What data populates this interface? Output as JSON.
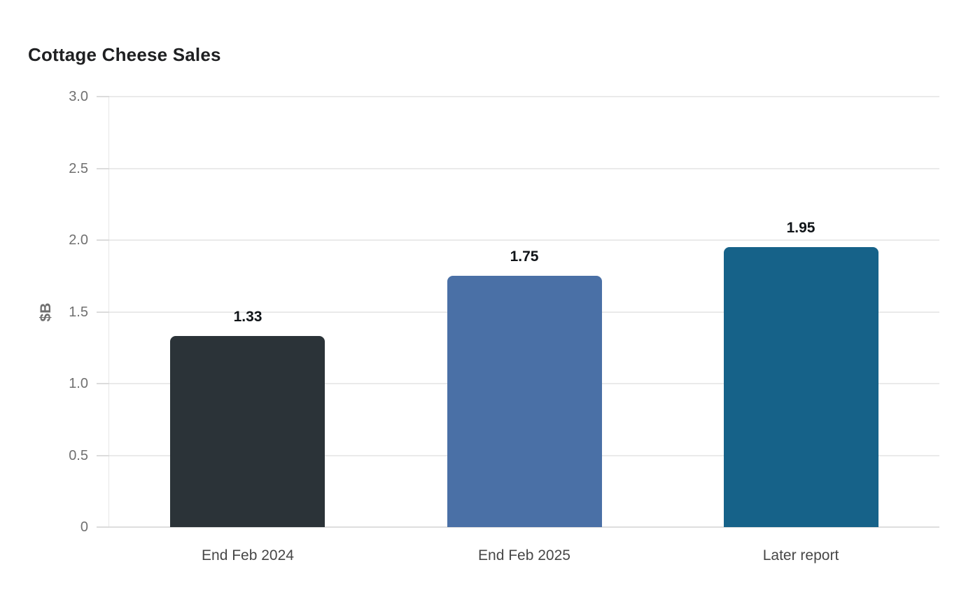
{
  "title": "Cottage Cheese Sales",
  "chart_data": {
    "type": "bar",
    "title": "Cottage Cheese Sales",
    "categories": [
      "End Feb 2024",
      "End Feb 2025",
      "Later report"
    ],
    "values": [
      1.33,
      1.75,
      1.95
    ],
    "value_labels": [
      "1.33",
      "1.75",
      "1.95"
    ],
    "bar_colors": [
      "#2b3338",
      "#4a70a6",
      "#166289"
    ],
    "xlabel": "",
    "ylabel": "$B",
    "ylim": [
      0,
      3
    ],
    "ytick_values": [
      3.0,
      2.5,
      2.0,
      1.5,
      1.0,
      0.5,
      0
    ],
    "ytick_labels": [
      "3.0",
      "2.5",
      "2.0",
      "1.5",
      "1.0",
      "0.5",
      "0"
    ],
    "grid": "horizontal",
    "legend": "none",
    "colors": {
      "background": "#ffffff",
      "gridline": "#eaeaea",
      "baseline": "#dedede",
      "title_text": "#1f2022",
      "ytick_text": "#707070",
      "xtick_text": "#474747",
      "value_label_text": "#101418",
      "ylabel_text": "#6e6e6e"
    }
  }
}
